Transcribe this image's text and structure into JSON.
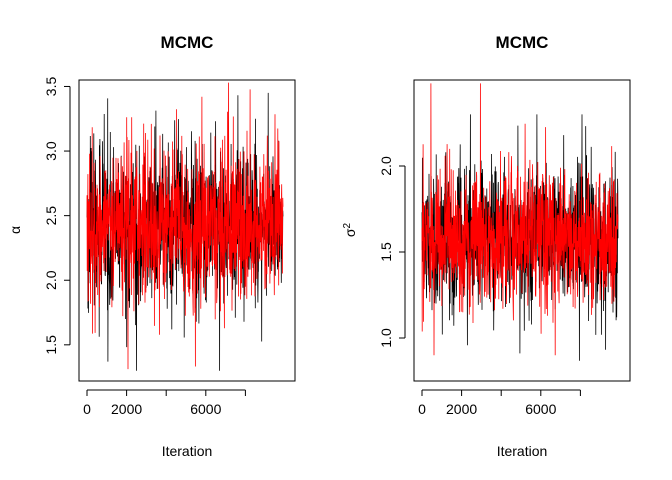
{
  "chart_data": [
    {
      "type": "line",
      "title": "MCMC",
      "xlabel": "Iteration",
      "ylabel": "α",
      "ylabel_sup": "",
      "xlim": [
        0,
        10000
      ],
      "ylim": [
        1.22,
        3.55
      ],
      "x_ticks": [
        0,
        2000,
        4000,
        6000,
        8000
      ],
      "x_tick_labels": [
        "0",
        "2000",
        "",
        "6000",
        ""
      ],
      "y_ticks": [
        1.5,
        2.0,
        2.5,
        3.0,
        3.5
      ],
      "y_tick_labels": [
        "1.5",
        "2.0",
        "2.5",
        "3.0",
        "3.5"
      ],
      "series": [
        {
          "color": "#000000",
          "n_iter": 10000,
          "center": 2.42,
          "spread": 0.3,
          "min": 1.3,
          "max": 3.45
        },
        {
          "color": "#ff0000",
          "n_iter": 10000,
          "center": 2.42,
          "spread": 0.3,
          "min": 1.22,
          "max": 3.53
        }
      ],
      "grid": false
    },
    {
      "type": "line",
      "title": "MCMC",
      "xlabel": "Iteration",
      "ylabel": "σ",
      "ylabel_sup": "2",
      "xlim": [
        0,
        10000
      ],
      "ylim": [
        0.75,
        2.5
      ],
      "x_ticks": [
        0,
        2000,
        4000,
        6000,
        8000
      ],
      "x_tick_labels": [
        "0",
        "2000",
        "",
        "6000",
        ""
      ],
      "y_ticks": [
        1.0,
        1.5,
        2.0
      ],
      "y_tick_labels": [
        "1.0",
        "1.5",
        "2.0"
      ],
      "series": [
        {
          "color": "#000000",
          "n_iter": 10000,
          "center": 1.58,
          "spread": 0.2,
          "min": 0.8,
          "max": 2.3
        },
        {
          "color": "#ff0000",
          "n_iter": 10000,
          "center": 1.58,
          "spread": 0.2,
          "min": 0.9,
          "max": 2.48
        }
      ],
      "grid": false
    }
  ]
}
